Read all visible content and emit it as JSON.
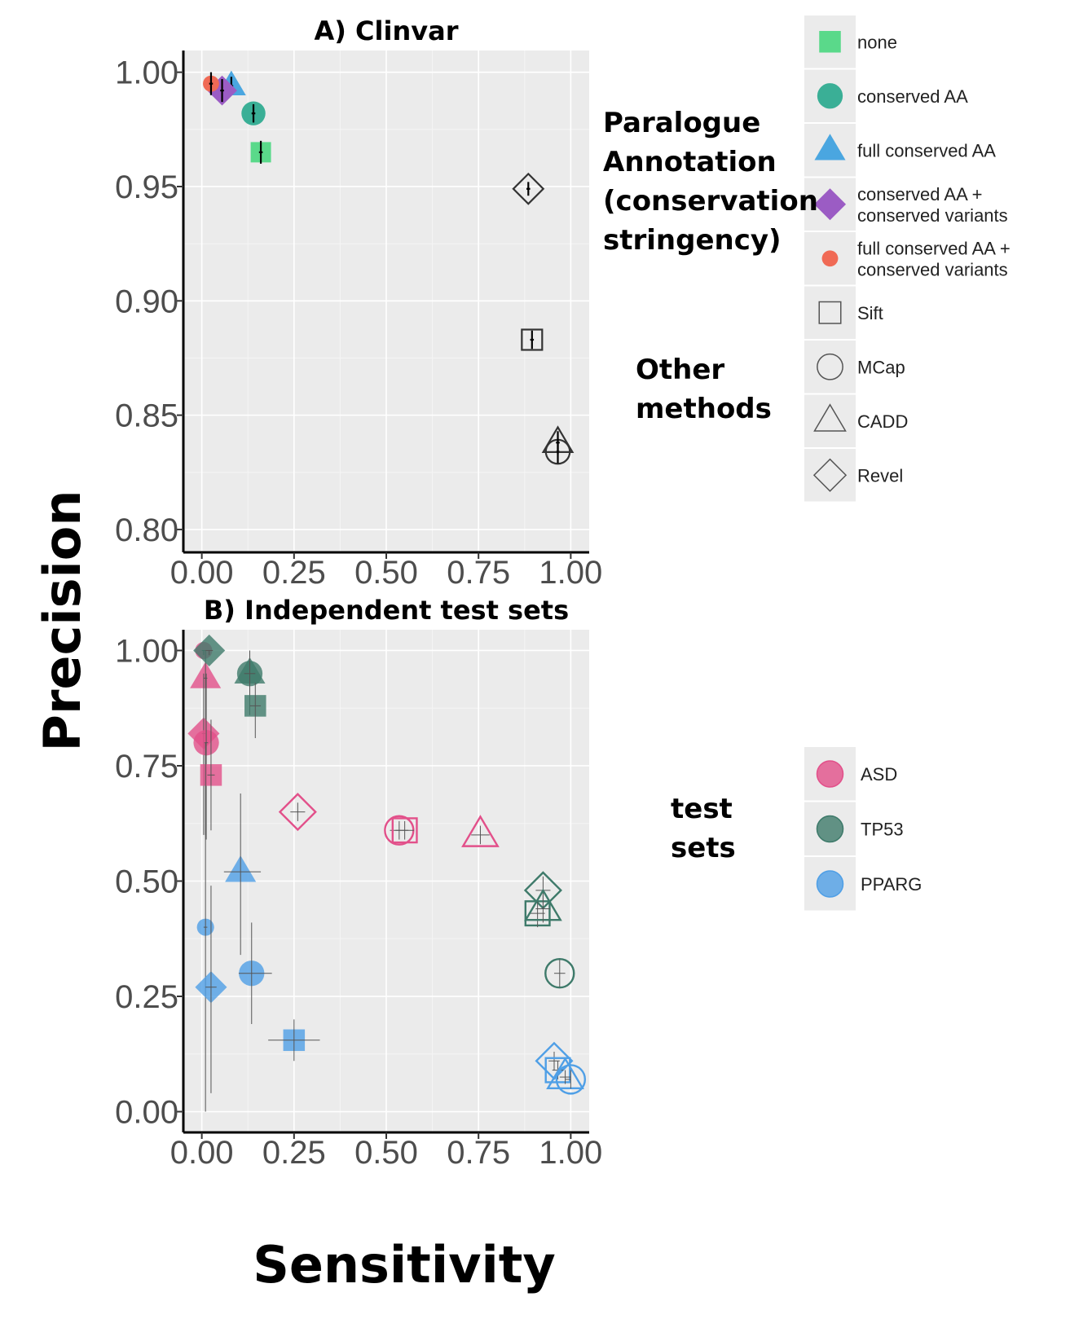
{
  "chart_data": {
    "type": "scatter",
    "axis_labels": {
      "x": "Sensitivity",
      "y": "Precision"
    },
    "panels": [
      {
        "id": "A",
        "title": "A) Clinvar",
        "xlim": [
          -0.05,
          1.05
        ],
        "ylim": [
          0.79,
          1.0095
        ],
        "x_ticks": [
          "0.00",
          "0.25",
          "0.50",
          "0.75",
          "1.00"
        ],
        "y_ticks": [
          "0.80",
          "0.85",
          "0.90",
          "0.95",
          "1.00"
        ],
        "grid": true,
        "points": [
          {
            "method": "none",
            "x": 0.16,
            "y": 0.965,
            "ylo": 0.96,
            "yhi": 0.97,
            "xlo": 0.155,
            "xhi": 0.165
          },
          {
            "method": "conserved AA",
            "x": 0.14,
            "y": 0.982,
            "ylo": 0.978,
            "yhi": 0.986,
            "xlo": 0.135,
            "xhi": 0.145
          },
          {
            "method": "full conserved AA",
            "x": 0.08,
            "y": 0.994,
            "ylo": 0.99,
            "yhi": 0.998,
            "xlo": 0.075,
            "xhi": 0.085
          },
          {
            "method": "conserved AA + conserved variants",
            "x": 0.055,
            "y": 0.992,
            "ylo": 0.987,
            "yhi": 0.997,
            "xlo": 0.05,
            "xhi": 0.06
          },
          {
            "method": "full conserved AA + conserved variants",
            "x": 0.025,
            "y": 0.995,
            "ylo": 0.99,
            "yhi": 1.0,
            "xlo": 0.02,
            "xhi": 0.03
          },
          {
            "method": "Sift",
            "x": 0.895,
            "y": 0.883,
            "ylo": 0.879,
            "yhi": 0.887,
            "xlo": 0.89,
            "xhi": 0.9
          },
          {
            "method": "MCap",
            "x": 0.965,
            "y": 0.834,
            "ylo": 0.829,
            "yhi": 0.839,
            "xlo": 0.96,
            "xhi": 0.97
          },
          {
            "method": "CADD",
            "x": 0.965,
            "y": 0.838,
            "ylo": 0.833,
            "yhi": 0.843,
            "xlo": 0.96,
            "xhi": 0.97
          },
          {
            "method": "Revel",
            "x": 0.885,
            "y": 0.949,
            "ylo": 0.946,
            "yhi": 0.952,
            "xlo": 0.88,
            "xhi": 0.89
          }
        ]
      },
      {
        "id": "B",
        "title": "B) Independent test sets",
        "xlim": [
          -0.05,
          1.05
        ],
        "ylim": [
          -0.045,
          1.045
        ],
        "x_ticks": [
          "0.00",
          "0.25",
          "0.50",
          "0.75",
          "1.00"
        ],
        "y_ticks": [
          "0.00",
          "0.25",
          "0.50",
          "0.75",
          "1.00"
        ],
        "grid": true,
        "points": [
          {
            "set": "ASD",
            "method": "full conserved AA + conserved variants",
            "x": 0.005,
            "y": 1.0,
            "ylo": 0.99,
            "yhi": 1.0,
            "xlo": 0.0,
            "xhi": 0.01
          },
          {
            "set": "ASD",
            "method": "full conserved AA",
            "x": 0.01,
            "y": 0.94,
            "ylo": 0.6,
            "yhi": 1.0,
            "xlo": 0.005,
            "xhi": 0.015
          },
          {
            "set": "ASD",
            "method": "conserved AA + conserved variants",
            "x": 0.005,
            "y": 0.82,
            "ylo": 0.6,
            "yhi": 0.95,
            "xlo": 0.0,
            "xhi": 0.01
          },
          {
            "set": "ASD",
            "method": "conserved AA",
            "x": 0.012,
            "y": 0.8,
            "ylo": 0.59,
            "yhi": 0.95,
            "xlo": 0.007,
            "xhi": 0.017
          },
          {
            "set": "ASD",
            "method": "none",
            "x": 0.025,
            "y": 0.73,
            "ylo": 0.61,
            "yhi": 0.85,
            "xlo": 0.015,
            "xhi": 0.035
          },
          {
            "set": "ASD",
            "method": "Revel",
            "x": 0.26,
            "y": 0.65,
            "ylo": 0.63,
            "yhi": 0.67,
            "xlo": 0.24,
            "xhi": 0.28
          },
          {
            "set": "ASD",
            "method": "MCap",
            "x": 0.535,
            "y": 0.61,
            "ylo": 0.59,
            "yhi": 0.63,
            "xlo": 0.51,
            "xhi": 0.56
          },
          {
            "set": "ASD",
            "method": "Sift",
            "x": 0.55,
            "y": 0.61,
            "ylo": 0.59,
            "yhi": 0.63,
            "xlo": 0.525,
            "xhi": 0.575
          },
          {
            "set": "ASD",
            "method": "CADD",
            "x": 0.755,
            "y": 0.6,
            "ylo": 0.58,
            "yhi": 0.62,
            "xlo": 0.73,
            "xhi": 0.78
          },
          {
            "set": "TP53",
            "method": "conserved AA + conserved variants",
            "x": 0.02,
            "y": 1.0,
            "ylo": 0.99,
            "yhi": 1.0,
            "xlo": 0.01,
            "xhi": 0.03
          },
          {
            "set": "TP53",
            "method": "full conserved AA",
            "x": 0.13,
            "y": 0.95,
            "ylo": 0.86,
            "yhi": 1.0,
            "xlo": 0.115,
            "xhi": 0.145
          },
          {
            "set": "TP53",
            "method": "conserved AA",
            "x": 0.13,
            "y": 0.95,
            "ylo": 0.88,
            "yhi": 0.99,
            "xlo": 0.115,
            "xhi": 0.145
          },
          {
            "set": "TP53",
            "method": "none",
            "x": 0.145,
            "y": 0.88,
            "ylo": 0.81,
            "yhi": 0.93,
            "xlo": 0.13,
            "xhi": 0.16
          },
          {
            "set": "TP53",
            "method": "Revel",
            "x": 0.925,
            "y": 0.48,
            "ylo": 0.45,
            "yhi": 0.51,
            "xlo": 0.905,
            "xhi": 0.945
          },
          {
            "set": "TP53",
            "method": "Sift",
            "x": 0.91,
            "y": 0.43,
            "ylo": 0.4,
            "yhi": 0.46,
            "xlo": 0.89,
            "xhi": 0.93
          },
          {
            "set": "TP53",
            "method": "CADD",
            "x": 0.925,
            "y": 0.44,
            "ylo": 0.41,
            "yhi": 0.47,
            "xlo": 0.905,
            "xhi": 0.945
          },
          {
            "set": "TP53",
            "method": "MCap",
            "x": 0.97,
            "y": 0.3,
            "ylo": 0.27,
            "yhi": 0.33,
            "xlo": 0.955,
            "xhi": 0.985
          },
          {
            "set": "PPARG",
            "method": "full conserved AA",
            "x": 0.105,
            "y": 0.52,
            "ylo": 0.34,
            "yhi": 0.69,
            "xlo": 0.06,
            "xhi": 0.16
          },
          {
            "set": "PPARG",
            "method": "full conserved AA + conserved variants",
            "x": 0.01,
            "y": 0.4,
            "ylo": 0.0,
            "yhi": 0.8,
            "xlo": 0.005,
            "xhi": 0.015
          },
          {
            "set": "PPARG",
            "method": "conserved AA + conserved variants",
            "x": 0.025,
            "y": 0.27,
            "ylo": 0.04,
            "yhi": 0.49,
            "xlo": 0.01,
            "xhi": 0.04
          },
          {
            "set": "PPARG",
            "method": "conserved AA",
            "x": 0.135,
            "y": 0.3,
            "ylo": 0.19,
            "yhi": 0.41,
            "xlo": 0.1,
            "xhi": 0.19
          },
          {
            "set": "PPARG",
            "method": "none",
            "x": 0.25,
            "y": 0.155,
            "ylo": 0.11,
            "yhi": 0.2,
            "xlo": 0.18,
            "xhi": 0.32
          },
          {
            "set": "PPARG",
            "method": "Revel",
            "x": 0.955,
            "y": 0.11,
            "ylo": 0.09,
            "yhi": 0.13,
            "xlo": 0.94,
            "xhi": 0.97
          },
          {
            "set": "PPARG",
            "method": "Sift",
            "x": 0.965,
            "y": 0.09,
            "ylo": 0.07,
            "yhi": 0.11,
            "xlo": 0.95,
            "xhi": 0.98
          },
          {
            "set": "PPARG",
            "method": "CADD",
            "x": 0.985,
            "y": 0.075,
            "ylo": 0.06,
            "yhi": 0.09,
            "xlo": 0.97,
            "xhi": 1.0
          },
          {
            "set": "PPARG",
            "method": "MCap",
            "x": 1.0,
            "y": 0.07,
            "ylo": 0.05,
            "yhi": 0.09,
            "xlo": 0.985,
            "xhi": 1.0
          }
        ]
      }
    ]
  },
  "legend": {
    "methods_group_label_lines": [
      "Paralogue",
      "Annotation",
      "(conservation",
      "stringency)"
    ],
    "other_group_label_lines": [
      "Other",
      "methods"
    ],
    "testsets_group_label_lines": [
      "test",
      "sets"
    ],
    "methods": [
      {
        "key": "none",
        "label_lines": [
          "none"
        ],
        "shape": "square",
        "filled": true,
        "color": "#5ad98a"
      },
      {
        "key": "conserved AA",
        "label_lines": [
          "conserved AA"
        ],
        "shape": "circle",
        "filled": true,
        "color": "#3aaf96"
      },
      {
        "key": "full conserved AA",
        "label_lines": [
          "full conserved AA"
        ],
        "shape": "triangle",
        "filled": true,
        "color": "#4aa6e0"
      },
      {
        "key": "conserved AA + conserved variants",
        "label_lines": [
          "conserved AA +",
          "conserved variants"
        ],
        "shape": "diamond",
        "filled": true,
        "color": "#9b5cc4"
      },
      {
        "key": "full conserved AA + conserved variants",
        "label_lines": [
          "full conserved AA +",
          "conserved variants"
        ],
        "shape": "dot",
        "filled": true,
        "color": "#f06a55"
      },
      {
        "key": "Sift",
        "label_lines": [
          "Sift"
        ],
        "shape": "square",
        "filled": false,
        "color": "#555555"
      },
      {
        "key": "MCap",
        "label_lines": [
          "MCap"
        ],
        "shape": "circle",
        "filled": false,
        "color": "#555555"
      },
      {
        "key": "CADD",
        "label_lines": [
          "CADD"
        ],
        "shape": "triangle",
        "filled": false,
        "color": "#555555"
      },
      {
        "key": "Revel",
        "label_lines": [
          "Revel"
        ],
        "shape": "diamond",
        "filled": false,
        "color": "#555555"
      }
    ],
    "test_sets": [
      {
        "key": "ASD",
        "label": "ASD",
        "color": "#e2508a"
      },
      {
        "key": "TP53",
        "label": "TP53",
        "color": "#3e7a6a"
      },
      {
        "key": "PPARG",
        "label": "PPARG",
        "color": "#4f9fe6"
      }
    ]
  }
}
